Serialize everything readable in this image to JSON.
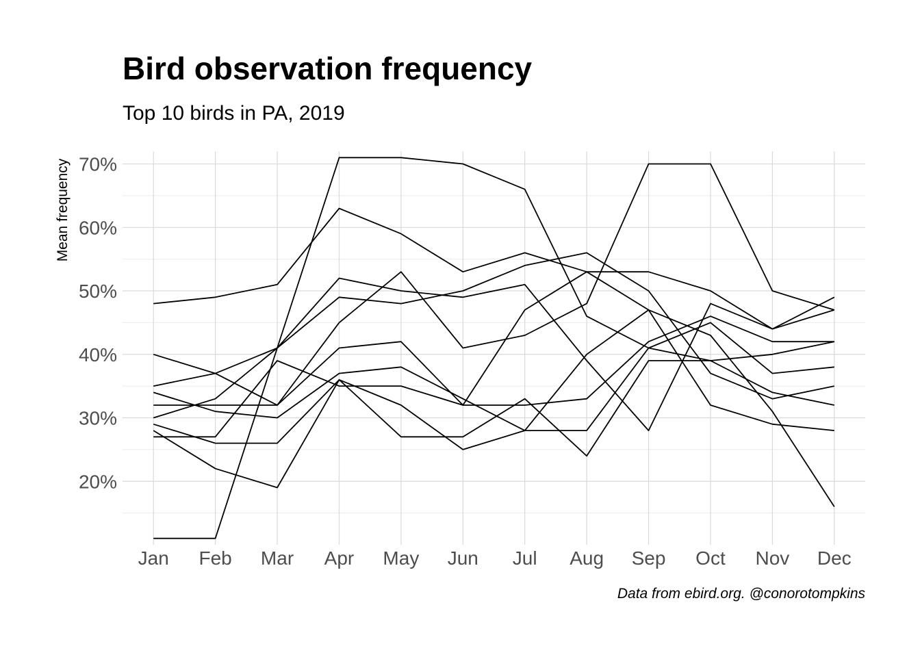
{
  "chart_data": {
    "type": "line",
    "title": "Bird observation frequency",
    "subtitle": "Top 10 birds in PA, 2019",
    "caption": "Data from ebird.org. @conorotompkins",
    "xlabel": "",
    "ylabel": "Mean frequency",
    "categories": [
      "Jan",
      "Feb",
      "Mar",
      "Apr",
      "May",
      "Jun",
      "Jul",
      "Aug",
      "Sep",
      "Oct",
      "Nov",
      "Dec"
    ],
    "ylim": [
      10,
      72
    ],
    "yticks": [
      20,
      30,
      40,
      50,
      60,
      70
    ],
    "ytick_format": "%",
    "grid": true,
    "line_color": "#000000",
    "series": [
      {
        "values": [
          48,
          49,
          51,
          63,
          59,
          53,
          56,
          53,
          53,
          50,
          44,
          49
        ]
      },
      {
        "values": [
          11,
          11,
          41,
          71,
          71,
          70,
          66,
          46,
          41,
          45,
          37,
          38
        ]
      },
      {
        "values": [
          35,
          37,
          41,
          52,
          50,
          49,
          51,
          39,
          28,
          48,
          44,
          47
        ]
      },
      {
        "values": [
          40,
          37,
          32,
          45,
          53,
          41,
          43,
          48,
          70,
          70,
          50,
          47
        ]
      },
      {
        "values": [
          30,
          33,
          41,
          49,
          48,
          50,
          54,
          56,
          50,
          37,
          33,
          35
        ]
      },
      {
        "values": [
          32,
          32,
          32,
          41,
          42,
          32,
          32,
          33,
          42,
          46,
          42,
          42
        ]
      },
      {
        "values": [
          34,
          31,
          30,
          37,
          38,
          33,
          28,
          28,
          41,
          39,
          40,
          42
        ]
      },
      {
        "values": [
          28,
          22,
          19,
          36,
          32,
          25,
          28,
          40,
          47,
          32,
          29,
          28
        ]
      },
      {
        "values": [
          29,
          26,
          26,
          36,
          27,
          27,
          33,
          24,
          39,
          39,
          34,
          32
        ]
      },
      {
        "values": [
          27,
          27,
          39,
          35,
          35,
          32,
          47,
          53,
          47,
          43,
          31,
          16
        ]
      }
    ]
  }
}
